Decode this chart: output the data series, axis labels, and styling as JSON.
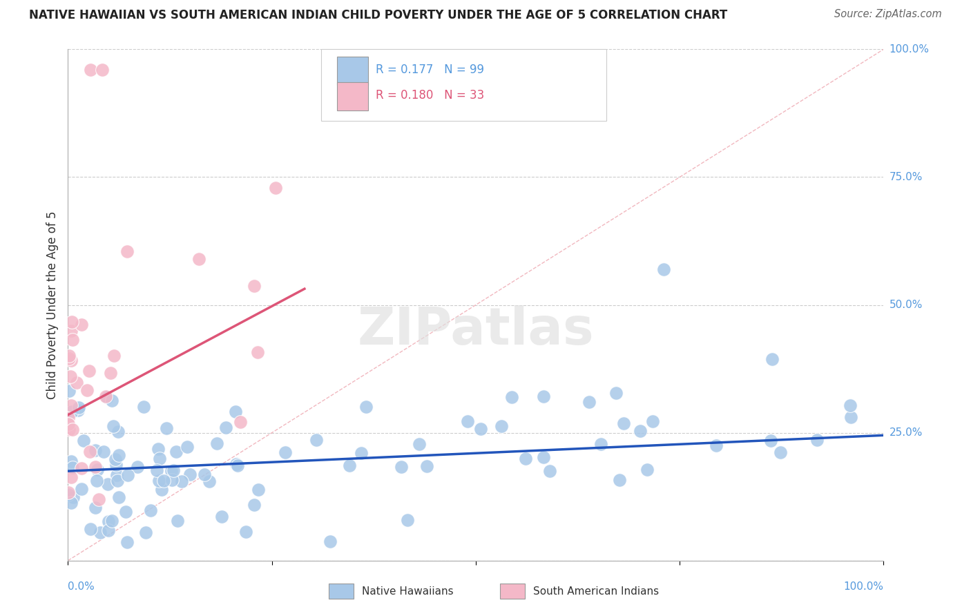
{
  "title": "NATIVE HAWAIIAN VS SOUTH AMERICAN INDIAN CHILD POVERTY UNDER THE AGE OF 5 CORRELATION CHART",
  "source": "Source: ZipAtlas.com",
  "ylabel": "Child Poverty Under the Age of 5",
  "xlim": [
    0.0,
    1.0
  ],
  "ylim": [
    0.0,
    1.0
  ],
  "ytick_positions": [
    0.0,
    0.25,
    0.5,
    0.75,
    1.0
  ],
  "ytick_right_labels": [
    "100.0%",
    "75.0%",
    "50.0%",
    "25.0%"
  ],
  "ytick_right_pos": [
    1.0,
    0.75,
    0.5,
    0.25
  ],
  "grid_color": "#cccccc",
  "background_color": "#ffffff",
  "blue_R": 0.177,
  "blue_N": 99,
  "pink_R": 0.18,
  "pink_N": 33,
  "blue_color": "#a8c8e8",
  "pink_color": "#f4b8c8",
  "blue_line_color": "#2255bb",
  "pink_line_color": "#dd5577",
  "diagonal_color": "#f0b0b8",
  "right_label_color": "#5599dd",
  "blue_intercept": 0.175,
  "blue_slope": 0.07,
  "pink_intercept": 0.285,
  "pink_slope": 0.85,
  "pink_line_end_x": 0.29
}
